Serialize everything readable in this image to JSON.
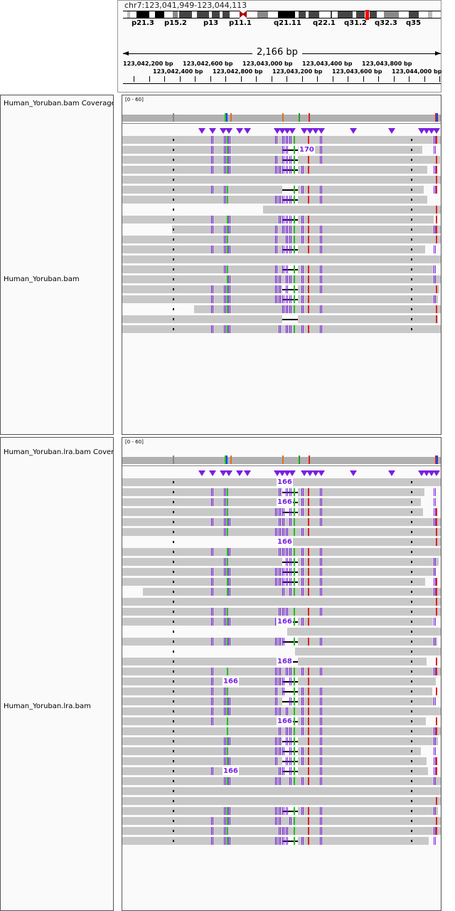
{
  "header": {
    "locus": "chr7:123,041,949-123,044,113",
    "span": "2,166 bp",
    "cytobands": [
      "p21.3",
      "p15.2",
      "p13",
      "p11.1",
      "q21.11",
      "q22.1",
      "q31.2",
      "q32.3",
      "q35"
    ],
    "ruler_labels": [
      "123,042,200 bp",
      "123,042,400 bp",
      "123,042,600 bp",
      "123,042,800 bp",
      "123,043,000 bp",
      "123,043,200 bp",
      "123,043,400 bp",
      "123,043,600 bp",
      "123,043,800 bp",
      "123,044,000 bp"
    ]
  },
  "tracks": [
    {
      "coverage_name": "Human_Yoruban.bam Coverage",
      "reads_name": "Human_Yoruban.bam",
      "range": "[0 - 60]",
      "insertion_labels": [
        "170"
      ]
    },
    {
      "coverage_name": "Human_Yoruban.lra.bam Coverage",
      "reads_name": "Human_Yoruban.lra.bam",
      "range": "[0 - 60]",
      "insertion_labels": [
        "166",
        "166",
        "166",
        "166",
        "168",
        "166",
        "166",
        "166"
      ]
    }
  ],
  "colors": {
    "read": "#c8c8c8",
    "coverage": "#b0b0b0",
    "insertion": "#7a1fe0",
    "mismatch_red": "#e02020",
    "mismatch_green": "#20c020"
  }
}
